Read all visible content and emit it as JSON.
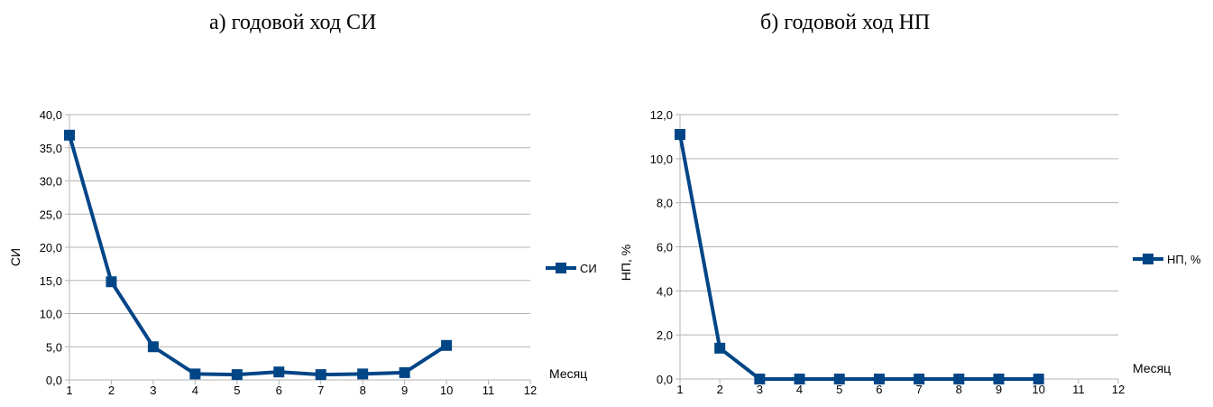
{
  "captions": {
    "a": "а) годовой ход СИ",
    "b": "б) годовой ход НП"
  },
  "colors": {
    "series": "#004586",
    "grid": "#b3b3b3",
    "axis": "#b3b3b3"
  },
  "chart_data": [
    {
      "type": "line",
      "title": "",
      "xlabel": "Месяц",
      "ylabel": "СИ",
      "x": [
        1,
        2,
        3,
        4,
        5,
        6,
        7,
        8,
        9,
        10
      ],
      "x_ticks": [
        "1",
        "2",
        "3",
        "4",
        "5",
        "6",
        "7",
        "8",
        "9",
        "10",
        "11",
        "12"
      ],
      "xlim": [
        1,
        12
      ],
      "ylim": [
        0,
        40
      ],
      "y_ticks": [
        "0,0",
        "5,0",
        "10,0",
        "15,0",
        "20,0",
        "25,0",
        "30,0",
        "35,0",
        "40,0"
      ],
      "grid": true,
      "legend": "right",
      "series": [
        {
          "name": "СИ",
          "values": [
            36.9,
            14.8,
            5.0,
            0.9,
            0.8,
            1.2,
            0.8,
            0.9,
            1.1,
            5.2
          ]
        }
      ]
    },
    {
      "type": "line",
      "title": "",
      "xlabel": "Месяц",
      "ylabel": "НП, %",
      "x": [
        1,
        2,
        3,
        4,
        5,
        6,
        7,
        8,
        9,
        10
      ],
      "x_ticks": [
        "1",
        "2",
        "3",
        "4",
        "5",
        "6",
        "7",
        "8",
        "9",
        "10",
        "11",
        "12"
      ],
      "xlim": [
        1,
        12
      ],
      "ylim": [
        0,
        12
      ],
      "y_ticks": [
        "0,0",
        "2,0",
        "4,0",
        "6,0",
        "8,0",
        "10,0",
        "12,0"
      ],
      "grid": true,
      "legend": "right",
      "series": [
        {
          "name": "НП, %",
          "values": [
            11.1,
            1.4,
            0.0,
            0.0,
            0.0,
            0.0,
            0.0,
            0.0,
            0.0,
            0.0
          ]
        }
      ]
    }
  ]
}
